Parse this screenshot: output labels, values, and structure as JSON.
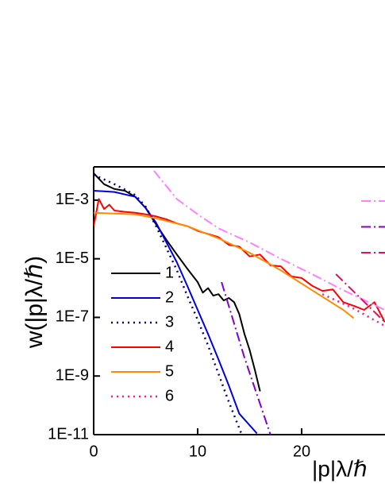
{
  "chart_data": {
    "type": "line",
    "y_label": "w(|p|λ/ℏ)",
    "x_label": "|p|λ/ℏ",
    "xlim": [
      0,
      28.1
    ],
    "ylim": [
      1e-11,
      0.01
    ],
    "xticks": [
      0,
      10,
      20
    ],
    "yticks": [
      {
        "value": 0.001,
        "label": "1E-3"
      },
      {
        "value": 1e-05,
        "label": "1E-5"
      },
      {
        "value": 1e-07,
        "label": "1E-7"
      },
      {
        "value": 1e-09,
        "label": "1E-9"
      },
      {
        "value": 1e-11,
        "label": "1E-11"
      }
    ],
    "log_y": true,
    "grid": false,
    "legend": "left",
    "series": [
      {
        "name": "1",
        "color": "#000000",
        "dash": "solid",
        "x": [
          0,
          1,
          2,
          3,
          4,
          5,
          6,
          7,
          8,
          9,
          10,
          10.5,
          11,
          11.5,
          12,
          12.5,
          13,
          13.5,
          14,
          14.5,
          15,
          15.5,
          16
        ],
        "values": [
          0.0083,
          0.0035,
          0.0024,
          0.0021,
          0.0013,
          0.00054,
          0.00015,
          4.4e-05,
          1.4e-05,
          4.6e-06,
          1.6e-06,
          7e-07,
          1e-06,
          5.5e-07,
          6.2e-07,
          3.8e-07,
          4.6e-07,
          3.3e-07,
          1.3e-07,
          2.7e-08,
          7.7e-09,
          1.6e-09,
          3e-10
        ]
      },
      {
        "name": "2",
        "color": "#0000dd",
        "dash": "solid",
        "x": [
          0,
          2,
          4,
          5,
          6,
          7,
          8,
          9,
          10,
          11,
          12,
          13,
          14,
          15.7
        ],
        "values": [
          0.0021,
          0.0019,
          0.0013,
          0.00054,
          0.00017,
          3.6e-05,
          7.6e-06,
          1.2e-06,
          1.8e-07,
          2.7e-08,
          3.7e-09,
          4.7e-10,
          5.2e-11,
          1.1e-11
        ]
      },
      {
        "name": "3",
        "color": "#000080",
        "dash": "dot",
        "x": [
          0,
          2,
          4,
          5,
          6,
          7,
          8,
          9,
          10,
          11,
          12,
          13,
          14.2
        ],
        "values": [
          0.0074,
          0.0035,
          0.0015,
          0.0006,
          0.00013,
          2.3e-05,
          4.1e-06,
          5.5e-07,
          8.3e-08,
          1.1e-08,
          1.2e-09,
          1.3e-10,
          1.1e-11
        ]
      },
      {
        "name": "4",
        "color": "#ff0000",
        "dash": "solid",
        "x": [
          0,
          0.5,
          1,
          1.5,
          2,
          3,
          4,
          5,
          6,
          7,
          8,
          9,
          10,
          11,
          12,
          13,
          14,
          15,
          16,
          17,
          18,
          19,
          20,
          21,
          22,
          23,
          24,
          25,
          26,
          27,
          28
        ],
        "values": [
          0.00013,
          0.0011,
          0.0005,
          0.0007,
          0.00044,
          0.0004,
          0.00037,
          0.00033,
          0.00028,
          0.00022,
          0.00016,
          0.00013,
          9e-05,
          7e-05,
          5.5e-05,
          3e-05,
          2.6e-05,
          1.2e-05,
          1.4e-05,
          6e-06,
          5.5e-06,
          2.5e-06,
          2.2e-06,
          1.2e-06,
          8e-07,
          9e-07,
          3.3e-07,
          2.5e-07,
          1.8e-07,
          3.3e-07,
          6.9e-08
        ]
      },
      {
        "name": "5",
        "color": "#ff8c00",
        "dash": "solid",
        "x": [
          0,
          4,
          6,
          9,
          12,
          15,
          18,
          21,
          24,
          25
        ],
        "values": [
          0.00037,
          0.00033,
          0.00024,
          0.00013,
          5e-05,
          1.6e-05,
          4e-06,
          8.5e-07,
          1.8e-07,
          9.5e-08
        ]
      },
      {
        "name": "6",
        "color": "#ff1493",
        "dash": "dot",
        "x": [
          22,
          25,
          28
        ],
        "values": [
          6.2e-07,
          2e-07,
          5.1e-08
        ]
      },
      {
        "color": "#ff80ff",
        "dash": "dashdot",
        "x": [
          5.8,
          8,
          10,
          12,
          15,
          18,
          21,
          24,
          28
        ],
        "values": [
          0.01,
          0.0011,
          0.00033,
          0.00011,
          3.6e-05,
          1e-05,
          3e-06,
          8.5e-07,
          1.8e-07
        ]
      },
      {
        "color": "#8000d0",
        "dash": "dashdot",
        "x": [
          12.3,
          14.5,
          17
        ],
        "values": [
          1.6e-06,
          4.2e-09,
          1e-11
        ]
      },
      {
        "color": "#e0105a",
        "dash": "dashdot",
        "x": [
          23.3,
          28
        ],
        "values": [
          3e-06,
          6.9e-08
        ]
      }
    ]
  }
}
